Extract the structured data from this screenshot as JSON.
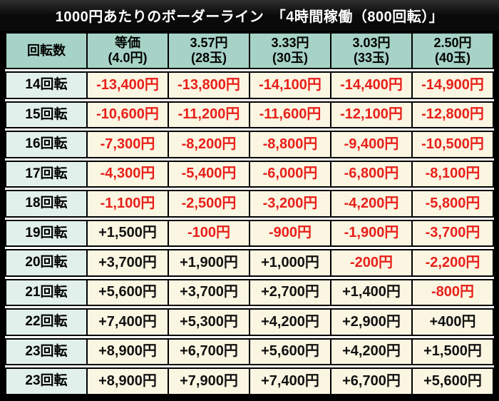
{
  "title": "1000円あたりのボーダーライン　「4時間稼働（800回転）」",
  "colors": {
    "frame": "#000000",
    "row_gap": "#ffffff",
    "header_bg": "#a6d3c6",
    "label_bg": "#e2f0ec",
    "cell_bg": "#fbf6e2",
    "negative": "#e8201a",
    "positive": "#111111",
    "title_text": "#ffffff"
  },
  "chart_data": {
    "type": "table",
    "title": "1000円あたりのボーダーライン　「4時間稼働（800回転）」",
    "columns": [
      [
        "回転数",
        ""
      ],
      [
        "等価",
        "(4.0円)"
      ],
      [
        "3.57円",
        "(28玉)"
      ],
      [
        "3.33円",
        "(30玉)"
      ],
      [
        "3.03円",
        "(33玉)"
      ],
      [
        "2.50円",
        "(40玉)"
      ]
    ],
    "rows": [
      {
        "label": "14回転",
        "values": [
          "-13,400円",
          "-13,800円",
          "-14,100円",
          "-14,400円",
          "-14,900円"
        ]
      },
      {
        "label": "15回転",
        "values": [
          "-10,600円",
          "-11,200円",
          "-11,600円",
          "-12,100円",
          "-12,800円"
        ]
      },
      {
        "label": "16回転",
        "values": [
          "-7,300円",
          "-8,200円",
          "-8,800円",
          "-9,400円",
          "-10,500円"
        ]
      },
      {
        "label": "17回転",
        "values": [
          "-4,300円",
          "-5,400円",
          "-6,000円",
          "-6,800円",
          "-8,100円"
        ]
      },
      {
        "label": "18回転",
        "values": [
          "-1,100円",
          "-2,500円",
          "-3,200円",
          "-4,200円",
          "-5,800円"
        ]
      },
      {
        "label": "19回転",
        "values": [
          "+1,500円",
          "-100円",
          "-900円",
          "-1,900円",
          "-3,700円"
        ]
      },
      {
        "label": "20回転",
        "values": [
          "+3,700円",
          "+1,900円",
          "+1,000円",
          "-200円",
          "-2,200円"
        ]
      },
      {
        "label": "21回転",
        "values": [
          "+5,600円",
          "+3,700円",
          "+2,700円",
          "+1,400円",
          "-800円"
        ]
      },
      {
        "label": "22回転",
        "values": [
          "+7,400円",
          "+5,300円",
          "+4,200円",
          "+2,900円",
          "+400円"
        ]
      },
      {
        "label": "23回転",
        "values": [
          "+8,900円",
          "+6,700円",
          "+5,600円",
          "+4,200円",
          "+1,500円"
        ]
      },
      {
        "label": "23回転",
        "values": [
          "+8,900円",
          "+7,900円",
          "+7,400円",
          "+6,700円",
          "+5,600円"
        ]
      }
    ]
  }
}
